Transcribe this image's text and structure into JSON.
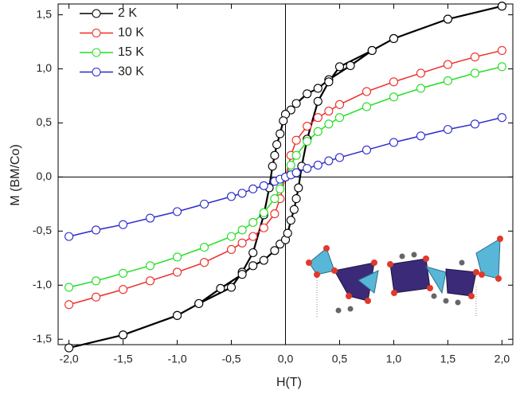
{
  "chart_data": {
    "type": "line",
    "xlabel": "H(T)",
    "ylabel": "M (BM/Co)",
    "xlim": [
      -2.1,
      2.1
    ],
    "ylim": [
      -1.55,
      1.6
    ],
    "xticks": [
      {
        "value": -2,
        "label": "-2,0"
      },
      {
        "value": -1.5,
        "label": "-1,5"
      },
      {
        "value": -1,
        "label": "-1,0"
      },
      {
        "value": -0.5,
        "label": "-0,5"
      },
      {
        "value": 0,
        "label": "0,0"
      },
      {
        "value": 0.5,
        "label": "0,5"
      },
      {
        "value": 1,
        "label": "1,0"
      },
      {
        "value": 1.5,
        "label": "1,5"
      },
      {
        "value": 2,
        "label": "2,0"
      }
    ],
    "yticks": [
      {
        "value": -1.5,
        "label": "-1,5"
      },
      {
        "value": -1,
        "label": "-1,0"
      },
      {
        "value": -0.5,
        "label": "-0,5"
      },
      {
        "value": 0,
        "label": "0,0"
      },
      {
        "value": 0.5,
        "label": "0,5"
      },
      {
        "value": 1,
        "label": "1,0"
      },
      {
        "value": 1.5,
        "label": "1,5"
      }
    ],
    "legend": "upper left",
    "series": [
      {
        "name": "2 K",
        "color": "#000000",
        "x": [
          2,
          1.5,
          1,
          0.8,
          0.6,
          0.4,
          0.3,
          0.2,
          0.1,
          0.05,
          0,
          -0.02,
          -0.05,
          -0.08,
          -0.1,
          -0.12,
          -0.15,
          -0.2,
          -0.3,
          -0.4,
          -0.5,
          -0.8,
          -1,
          -1.5,
          -2,
          -1.5,
          -1,
          -0.8,
          -0.6,
          -0.4,
          -0.3,
          -0.2,
          -0.1,
          -0.05,
          0,
          0.02,
          0.05,
          0.08,
          0.1,
          0.12,
          0.15,
          0.2,
          0.3,
          0.4,
          0.5,
          0.8,
          1,
          1.5,
          2
        ],
        "values": [
          1.58,
          1.46,
          1.28,
          1.17,
          1.03,
          0.9,
          0.82,
          0.77,
          0.68,
          0.62,
          0.58,
          0.52,
          0.4,
          0.3,
          0.2,
          0.1,
          -0.1,
          -0.35,
          -0.7,
          -0.88,
          -1.02,
          -1.17,
          -1.28,
          -1.46,
          -1.58,
          -1.46,
          -1.28,
          -1.17,
          -1.03,
          -0.9,
          -0.82,
          -0.77,
          -0.68,
          -0.62,
          -0.58,
          -0.52,
          -0.4,
          -0.3,
          -0.2,
          -0.1,
          0.1,
          0.35,
          0.7,
          0.88,
          1.02,
          1.17,
          1.28,
          1.46,
          1.58
        ]
      },
      {
        "name": "10 K",
        "color": "#ee2a24",
        "x": [
          -2,
          -1.75,
          -1.5,
          -1.25,
          -1,
          -0.75,
          -0.5,
          -0.4,
          -0.3,
          -0.2,
          -0.1,
          -0.05,
          0,
          0.05,
          0.1,
          0.2,
          0.3,
          0.4,
          0.5,
          0.75,
          1,
          1.25,
          1.5,
          1.75,
          2
        ],
        "values": [
          -1.18,
          -1.11,
          -1.04,
          -0.96,
          -0.88,
          -0.79,
          -0.67,
          -0.61,
          -0.55,
          -0.47,
          -0.34,
          -0.2,
          0,
          0.2,
          0.34,
          0.47,
          0.55,
          0.61,
          0.67,
          0.79,
          0.88,
          0.96,
          1.04,
          1.11,
          1.17
        ]
      },
      {
        "name": "15 K",
        "color": "#22dd22",
        "x": [
          -2,
          -1.75,
          -1.5,
          -1.25,
          -1,
          -0.75,
          -0.5,
          -0.4,
          -0.3,
          -0.2,
          -0.1,
          -0.05,
          0,
          0.05,
          0.1,
          0.2,
          0.3,
          0.4,
          0.5,
          0.75,
          1,
          1.25,
          1.5,
          1.75,
          2
        ],
        "values": [
          -1.02,
          -0.96,
          -0.89,
          -0.82,
          -0.74,
          -0.65,
          -0.55,
          -0.49,
          -0.42,
          -0.33,
          -0.2,
          -0.11,
          0,
          0.11,
          0.2,
          0.33,
          0.42,
          0.49,
          0.55,
          0.65,
          0.74,
          0.82,
          0.89,
          0.96,
          1.02
        ]
      },
      {
        "name": "30 K",
        "color": "#2a2acc",
        "x": [
          -2,
          -1.75,
          -1.5,
          -1.25,
          -1,
          -0.75,
          -0.5,
          -0.4,
          -0.3,
          -0.2,
          -0.1,
          -0.05,
          0,
          0.05,
          0.1,
          0.2,
          0.3,
          0.4,
          0.5,
          0.75,
          1,
          1.25,
          1.5,
          1.75,
          2
        ],
        "values": [
          -0.55,
          -0.49,
          -0.44,
          -0.38,
          -0.32,
          -0.25,
          -0.18,
          -0.15,
          -0.11,
          -0.08,
          -0.04,
          -0.02,
          0,
          0.02,
          0.04,
          0.08,
          0.11,
          0.15,
          0.18,
          0.25,
          0.32,
          0.38,
          0.44,
          0.49,
          0.55
        ]
      }
    ]
  }
}
